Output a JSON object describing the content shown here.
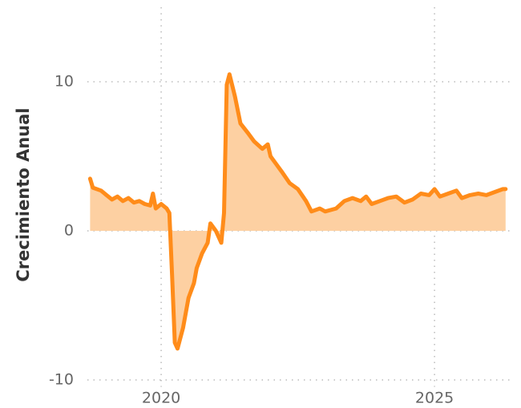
{
  "chart_data": {
    "type": "area",
    "y_label": "Crecimiento Anual",
    "color": "#ff8c1a",
    "fill_color": "#fdd0a2",
    "x": [
      2018.7,
      2018.75,
      2018.9,
      2019.0,
      2019.1,
      2019.2,
      2019.3,
      2019.4,
      2019.5,
      2019.6,
      2019.7,
      2019.8,
      2019.85,
      2019.9,
      2020.0,
      2020.1,
      2020.15,
      2020.2,
      2020.25,
      2020.3,
      2020.4,
      2020.5,
      2020.6,
      2020.65,
      2020.75,
      2020.85,
      2020.9,
      2021.0,
      2021.1,
      2021.15,
      2021.2,
      2021.25,
      2021.35,
      2021.45,
      2021.6,
      2021.7,
      2021.85,
      2021.95,
      2022.0,
      2022.1,
      2022.2,
      2022.35,
      2022.5,
      2022.65,
      2022.75,
      2022.9,
      2023.0,
      2023.2,
      2023.35,
      2023.5,
      2023.65,
      2023.75,
      2023.85,
      2024.0,
      2024.15,
      2024.3,
      2024.45,
      2024.6,
      2024.75,
      2024.9,
      2025.0,
      2025.1,
      2025.25,
      2025.4,
      2025.5,
      2025.65,
      2025.8,
      2025.95,
      2026.1,
      2026.25,
      2026.3
    ],
    "values": [
      3.5,
      2.9,
      2.7,
      2.4,
      2.1,
      2.3,
      2.0,
      2.2,
      1.9,
      2.0,
      1.8,
      1.7,
      2.5,
      1.5,
      1.8,
      1.5,
      1.2,
      -3.0,
      -7.5,
      -7.9,
      -6.5,
      -4.5,
      -3.5,
      -2.5,
      -1.5,
      -0.8,
      0.5,
      0.0,
      -0.8,
      1.2,
      9.8,
      10.5,
      9.0,
      7.2,
      6.5,
      6.0,
      5.5,
      5.8,
      5.0,
      4.5,
      4.0,
      3.2,
      2.8,
      2.0,
      1.3,
      1.5,
      1.3,
      1.5,
      2.0,
      2.2,
      2.0,
      2.3,
      1.8,
      2.0,
      2.2,
      2.3,
      1.9,
      2.1,
      2.5,
      2.4,
      2.8,
      2.3,
      2.5,
      2.7,
      2.2,
      2.4,
      2.5,
      2.4,
      2.6,
      2.8,
      2.8
    ],
    "xlim": [
      2018.65,
      2026.45
    ],
    "ylim": [
      -11,
      15
    ],
    "xticks": [
      2020,
      2025
    ],
    "yticks": [
      -10,
      0,
      10
    ],
    "grid": true
  }
}
